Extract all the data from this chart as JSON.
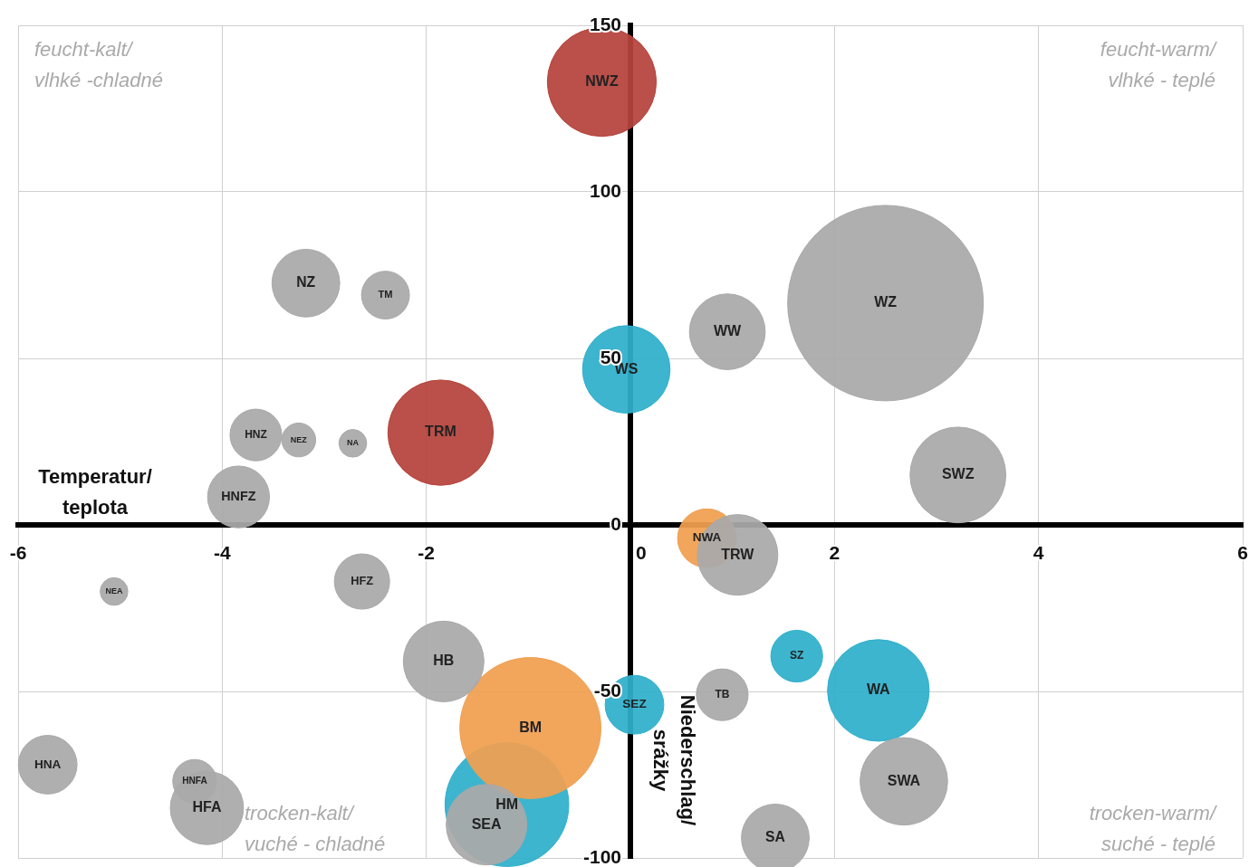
{
  "chart_data": {
    "type": "bubble",
    "xlabel": "Temperatur/\nteplota",
    "ylabel": "Niederschlag/\nsrážky",
    "annotations": [
      "feucht-kalt/\nvlhké -chladné",
      "feucht-warm/\nvlhké - teplé",
      "trocken-kalt/\nvuché - chladné",
      "trocken-warm/\nsuché - teplé"
    ],
    "xlim": [
      -6,
      6
    ],
    "xticks": [
      -6,
      -4,
      -2,
      0,
      2,
      4,
      6
    ],
    "ylim": [
      -100,
      150
    ],
    "yticks": [
      -100,
      -50,
      0,
      50,
      100,
      150
    ],
    "grid": true,
    "legend": false,
    "series": [
      {
        "color": "#a9a9a9",
        "x": [
          2.5,
          -3.18,
          -2.4,
          0.95,
          -3.67,
          -3.25,
          -2.72,
          -3.84,
          3.21,
          1.05,
          -5.06,
          -2.63,
          -1.83,
          0.9,
          -5.71,
          -4.27,
          -4.15,
          2.68,
          -1.41,
          1.42
        ],
        "values": [
          66.6,
          72.6,
          69,
          58,
          27,
          25.5,
          24.5,
          8.4,
          15,
          -9,
          -20,
          -17,
          -41,
          -51,
          -72,
          -77,
          -85,
          -77,
          -90,
          -94
        ],
        "sizes": [
          1,
          0.12,
          0.06,
          0.15,
          0.07,
          0.03,
          0.02,
          0.1,
          0.24,
          0.17,
          0.02,
          0.08,
          0.17,
          0.07,
          0.09,
          0.05,
          0.14,
          0.2,
          0.17,
          0.12
        ],
        "value_labels": [
          "WZ",
          "NZ",
          "TM",
          "WW",
          "HNZ",
          "NEZ",
          "NA",
          "HNFZ",
          "SWZ",
          "TRW",
          "NEA",
          "HFZ",
          "HB",
          "TB",
          "HNA",
          "HNFA",
          "HFA",
          "SWA",
          "SEA",
          "SA"
        ]
      },
      {
        "color": "#f0a050",
        "x": [
          0.75,
          -0.98
        ],
        "values": [
          -4,
          -61
        ],
        "sizes": [
          0.09,
          0.52
        ],
        "value_labels": [
          "NWA",
          "BM"
        ]
      },
      {
        "color": "#2fb0cc",
        "x": [
          -0.04,
          1.63,
          2.43,
          0.04,
          -1.21
        ],
        "values": [
          46.7,
          -39.4,
          -49.7,
          -54,
          -84
        ],
        "sizes": [
          0.2,
          0.07,
          0.27,
          0.09,
          0.4
        ],
        "value_labels": [
          "WS",
          "SZ",
          "WA",
          "SEZ",
          "HM"
        ]
      },
      {
        "color": "#b5443c",
        "x": [
          -0.28,
          -1.86
        ],
        "values": [
          133,
          27.7
        ],
        "sizes": [
          0.31,
          0.29
        ],
        "value_labels": [
          "NWZ",
          "TRM"
        ]
      }
    ]
  }
}
